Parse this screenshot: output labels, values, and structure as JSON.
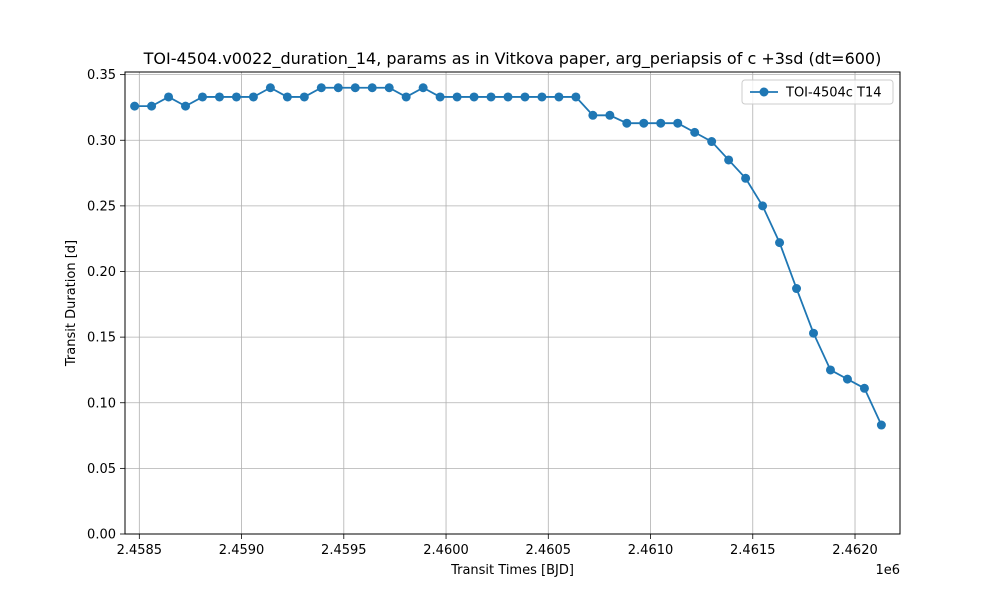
{
  "chart_data": {
    "type": "line",
    "title": "TOI-4504.v0022_duration_14, params as in Vitkova paper, arg_periapsis of c +3sd (dt=600)",
    "xlabel": "Transit Times [BJD]",
    "ylabel": "Transit Duration [d]",
    "x_offset_label": "1e6",
    "xlim": [
      2458430,
      2462220
    ],
    "ylim": [
      0.0,
      0.352
    ],
    "x_ticks": [
      2458500,
      2459000,
      2459500,
      2460000,
      2460500,
      2461000,
      2461500,
      2462000
    ],
    "x_tick_labels": [
      "2.4585",
      "2.4590",
      "2.4595",
      "2.4600",
      "2.4605",
      "2.4610",
      "2.4615",
      "2.4620"
    ],
    "y_ticks": [
      0.0,
      0.05,
      0.1,
      0.15,
      0.2,
      0.25,
      0.3,
      0.35
    ],
    "y_tick_labels": [
      "0.00",
      "0.05",
      "0.10",
      "0.15",
      "0.20",
      "0.25",
      "0.30",
      "0.35"
    ],
    "grid": true,
    "legend_position": "top-right",
    "series": [
      {
        "name": "TOI-4504c T14",
        "color": "#1f77b4",
        "marker": "circle",
        "x": [
          2458477,
          2458560,
          2458643,
          2458726,
          2458809,
          2458892,
          2458975,
          2459058,
          2459141,
          2459224,
          2459307,
          2459390,
          2459473,
          2459556,
          2459639,
          2459722,
          2459805,
          2459888,
          2459971,
          2460054,
          2460137,
          2460220,
          2460303,
          2460386,
          2460469,
          2460552,
          2460635,
          2460718,
          2460801,
          2460884,
          2460967,
          2461050,
          2461133,
          2461216,
          2461299,
          2461382,
          2461465,
          2461548,
          2461631,
          2461714,
          2461797,
          2461880,
          2461963,
          2462046,
          2462129
        ],
        "y": [
          0.326,
          0.326,
          0.333,
          0.326,
          0.333,
          0.333,
          0.333,
          0.333,
          0.34,
          0.333,
          0.333,
          0.34,
          0.34,
          0.34,
          0.34,
          0.34,
          0.333,
          0.34,
          0.333,
          0.333,
          0.333,
          0.333,
          0.333,
          0.333,
          0.333,
          0.333,
          0.333,
          0.319,
          0.319,
          0.313,
          0.313,
          0.313,
          0.313,
          0.306,
          0.299,
          0.285,
          0.271,
          0.25,
          0.222,
          0.187,
          0.153,
          0.125,
          0.118,
          0.111,
          0.083
        ]
      }
    ]
  }
}
